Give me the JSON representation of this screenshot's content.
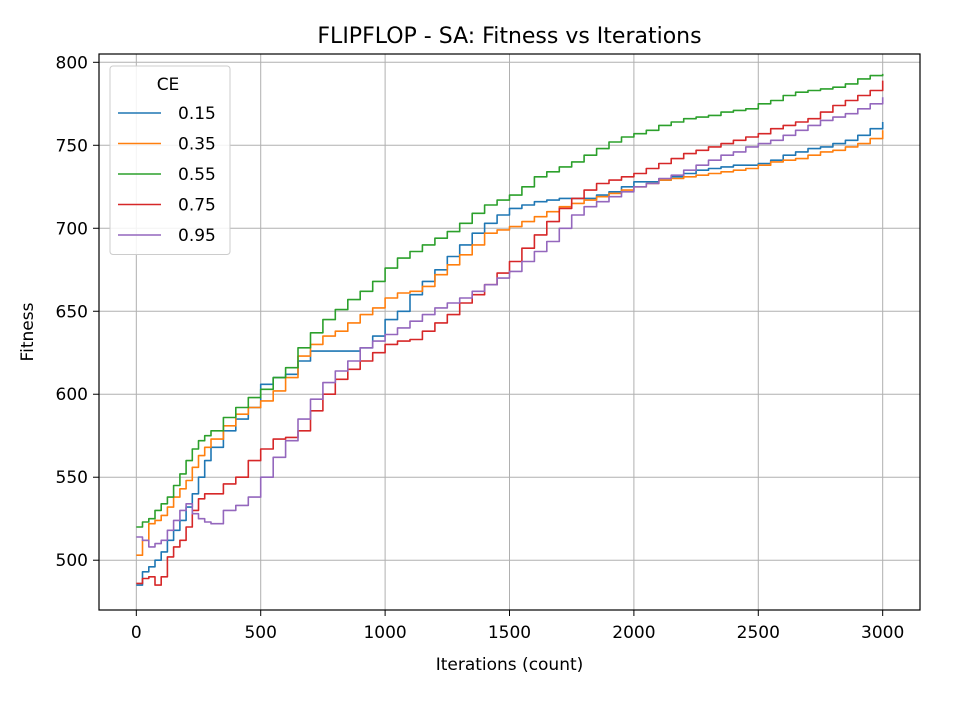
{
  "chart_data": {
    "type": "line",
    "title": "FLIPFLOP - SA: Fitness vs Iterations",
    "xlabel": "Iterations (count)",
    "ylabel": "Fitness",
    "xlim": [
      -150,
      3150
    ],
    "ylim": [
      470,
      805
    ],
    "xticks": [
      0,
      500,
      1000,
      1500,
      2000,
      2500,
      3000
    ],
    "yticks": [
      500,
      550,
      600,
      650,
      700,
      750,
      800
    ],
    "grid": true,
    "legend_title": "CE",
    "legend_position": "top-left",
    "series": [
      {
        "name": "0.15",
        "color": "#1f77b4",
        "x": [
          0,
          25,
          50,
          75,
          100,
          125,
          150,
          175,
          200,
          225,
          250,
          275,
          300,
          350,
          400,
          450,
          500,
          550,
          600,
          650,
          700,
          750,
          800,
          850,
          900,
          950,
          1000,
          1050,
          1100,
          1150,
          1200,
          1250,
          1300,
          1350,
          1400,
          1450,
          1500,
          1550,
          1600,
          1650,
          1700,
          1750,
          1800,
          1850,
          1900,
          1950,
          2000,
          2050,
          2100,
          2150,
          2200,
          2250,
          2300,
          2350,
          2400,
          2450,
          2500,
          2550,
          2600,
          2650,
          2700,
          2750,
          2800,
          2850,
          2900,
          2950,
          3000
        ],
        "y": [
          485,
          493,
          496,
          500,
          505,
          512,
          518,
          524,
          532,
          540,
          550,
          560,
          568,
          578,
          585,
          592,
          606,
          610,
          612,
          620,
          626,
          626,
          626,
          626,
          628,
          635,
          645,
          650,
          660,
          668,
          675,
          683,
          690,
          697,
          703,
          708,
          712,
          714,
          716,
          717,
          718,
          718,
          718,
          720,
          722,
          725,
          728,
          728,
          729,
          731,
          733,
          735,
          736,
          737,
          738,
          738,
          739,
          741,
          744,
          746,
          748,
          749,
          751,
          753,
          756,
          760,
          764
        ]
      },
      {
        "name": "0.35",
        "color": "#ff7f0e",
        "x": [
          0,
          25,
          50,
          75,
          100,
          125,
          150,
          175,
          200,
          225,
          250,
          275,
          300,
          350,
          400,
          450,
          500,
          550,
          600,
          650,
          700,
          750,
          800,
          850,
          900,
          950,
          1000,
          1050,
          1100,
          1150,
          1200,
          1250,
          1300,
          1350,
          1400,
          1450,
          1500,
          1550,
          1600,
          1650,
          1700,
          1750,
          1800,
          1850,
          1900,
          1950,
          2000,
          2050,
          2100,
          2150,
          2200,
          2250,
          2300,
          2350,
          2400,
          2450,
          2500,
          2550,
          2600,
          2650,
          2700,
          2750,
          2800,
          2850,
          2900,
          2950,
          3000
        ],
        "y": [
          503,
          512,
          522,
          524,
          527,
          532,
          538,
          543,
          548,
          556,
          563,
          568,
          573,
          581,
          588,
          592,
          596,
          602,
          610,
          623,
          630,
          635,
          638,
          643,
          648,
          652,
          658,
          661,
          662,
          665,
          672,
          678,
          684,
          690,
          697,
          699,
          701,
          704,
          707,
          710,
          713,
          715,
          717,
          719,
          721,
          723,
          725,
          727,
          729,
          730,
          731,
          732,
          733,
          734,
          735,
          736,
          738,
          740,
          741,
          742,
          744,
          746,
          747,
          749,
          751,
          754,
          759
        ]
      },
      {
        "name": "0.55",
        "color": "#2ca02c",
        "x": [
          0,
          25,
          50,
          75,
          100,
          125,
          150,
          175,
          200,
          225,
          250,
          275,
          300,
          350,
          400,
          450,
          500,
          550,
          600,
          650,
          700,
          750,
          800,
          850,
          900,
          950,
          1000,
          1050,
          1100,
          1150,
          1200,
          1250,
          1300,
          1350,
          1400,
          1450,
          1500,
          1550,
          1600,
          1650,
          1700,
          1750,
          1800,
          1850,
          1900,
          1950,
          2000,
          2050,
          2100,
          2150,
          2200,
          2250,
          2300,
          2350,
          2400,
          2450,
          2500,
          2550,
          2600,
          2650,
          2700,
          2750,
          2800,
          2850,
          2900,
          2950,
          3000
        ],
        "y": [
          520,
          523,
          525,
          530,
          534,
          538,
          545,
          552,
          560,
          567,
          572,
          575,
          578,
          586,
          592,
          598,
          603,
          610,
          616,
          628,
          637,
          645,
          651,
          657,
          662,
          668,
          676,
          682,
          686,
          690,
          694,
          698,
          703,
          709,
          714,
          717,
          720,
          725,
          731,
          734,
          737,
          740,
          744,
          748,
          752,
          755,
          757,
          759,
          762,
          764,
          766,
          767,
          768,
          770,
          771,
          772,
          775,
          777,
          780,
          782,
          783,
          784,
          785,
          787,
          790,
          792,
          793
        ]
      },
      {
        "name": "0.75",
        "color": "#d62728",
        "x": [
          0,
          25,
          50,
          75,
          100,
          125,
          150,
          175,
          200,
          225,
          250,
          275,
          300,
          350,
          400,
          450,
          500,
          550,
          600,
          650,
          700,
          750,
          800,
          850,
          900,
          950,
          1000,
          1050,
          1100,
          1150,
          1200,
          1250,
          1300,
          1350,
          1400,
          1450,
          1500,
          1550,
          1600,
          1650,
          1700,
          1750,
          1800,
          1850,
          1900,
          1950,
          2000,
          2050,
          2100,
          2150,
          2200,
          2250,
          2300,
          2350,
          2400,
          2450,
          2500,
          2550,
          2600,
          2650,
          2700,
          2750,
          2800,
          2850,
          2900,
          2950,
          3000
        ],
        "y": [
          486,
          489,
          490,
          485,
          490,
          502,
          508,
          512,
          520,
          530,
          537,
          540,
          540,
          546,
          550,
          560,
          567,
          573,
          574,
          578,
          590,
          600,
          609,
          615,
          620,
          625,
          630,
          632,
          633,
          638,
          643,
          648,
          655,
          660,
          666,
          673,
          680,
          688,
          696,
          704,
          712,
          718,
          723,
          727,
          729,
          731,
          733,
          736,
          739,
          742,
          745,
          747,
          749,
          751,
          753,
          755,
          757,
          760,
          762,
          764,
          766,
          770,
          774,
          777,
          780,
          783,
          789
        ]
      },
      {
        "name": "0.95",
        "color": "#9467bd",
        "x": [
          0,
          25,
          50,
          75,
          100,
          125,
          150,
          175,
          200,
          225,
          250,
          275,
          300,
          350,
          400,
          450,
          500,
          550,
          600,
          650,
          700,
          750,
          800,
          850,
          900,
          950,
          1000,
          1050,
          1100,
          1150,
          1200,
          1250,
          1300,
          1350,
          1400,
          1450,
          1500,
          1550,
          1600,
          1650,
          1700,
          1750,
          1800,
          1850,
          1900,
          1950,
          2000,
          2050,
          2100,
          2150,
          2200,
          2250,
          2300,
          2350,
          2400,
          2450,
          2500,
          2550,
          2600,
          2650,
          2700,
          2750,
          2800,
          2850,
          2900,
          2950,
          3000
        ],
        "y": [
          514,
          512,
          508,
          510,
          512,
          518,
          524,
          530,
          534,
          528,
          525,
          523,
          522,
          530,
          533,
          538,
          550,
          562,
          572,
          585,
          597,
          607,
          614,
          620,
          628,
          632,
          636,
          640,
          644,
          648,
          652,
          655,
          658,
          662,
          666,
          670,
          674,
          680,
          686,
          692,
          700,
          708,
          713,
          716,
          719,
          722,
          725,
          727,
          730,
          732,
          735,
          738,
          741,
          744,
          746,
          749,
          751,
          753,
          756,
          759,
          762,
          765,
          767,
          769,
          772,
          775,
          779
        ]
      }
    ]
  }
}
